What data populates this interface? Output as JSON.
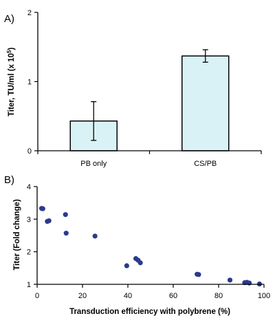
{
  "chart_data": [
    {
      "type": "bar",
      "panel_label": "A)",
      "categories": [
        "PB only",
        "CS/PB"
      ],
      "values": [
        0.43,
        1.37
      ],
      "error": [
        0.28,
        0.09
      ],
      "ylabel_prefix": "Titer, TU/ml (x 10",
      "ylabel_exp": "5",
      "ylabel_suffix": ")",
      "ylim": [
        0,
        2
      ],
      "yticks": [
        "0",
        "1",
        "2"
      ],
      "bar_color": "#d9f2f5",
      "grid": false
    },
    {
      "type": "scatter",
      "panel_label": "B)",
      "xlabel": "Transduction efficiency with polybrene (%)",
      "ylabel": "Titer (Fold change)",
      "xlim": [
        0,
        100
      ],
      "ylim": [
        1,
        4
      ],
      "xticks": [
        "0",
        "20",
        "40",
        "60",
        "80",
        "100"
      ],
      "yticks": [
        "1",
        "2",
        "3",
        "4"
      ],
      "point_color": "#2b3a8c",
      "grid": false,
      "points": [
        [
          2,
          3.33
        ],
        [
          2.5,
          3.32
        ],
        [
          4.5,
          2.93
        ],
        [
          5.2,
          2.95
        ],
        [
          12.5,
          3.14
        ],
        [
          12.8,
          2.57
        ],
        [
          25.5,
          2.48
        ],
        [
          39.5,
          1.57
        ],
        [
          43.5,
          1.79
        ],
        [
          44.5,
          1.74
        ],
        [
          45.5,
          1.66
        ],
        [
          70.5,
          1.31
        ],
        [
          71.2,
          1.3
        ],
        [
          85,
          1.13
        ],
        [
          91.5,
          1.05
        ],
        [
          92.5,
          1.06
        ],
        [
          93.5,
          1.04
        ],
        [
          98,
          1.01
        ]
      ]
    }
  ]
}
